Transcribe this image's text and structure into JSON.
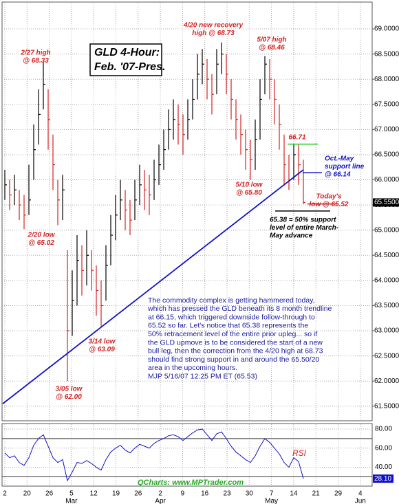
{
  "chart_data": {
    "type": "ohlc",
    "title_lines": [
      "GLD 4-Hour:",
      "Feb. '07-Pres."
    ],
    "high": [
      66.2,
      66.0,
      66.1,
      65.8,
      65.7,
      66.3,
      67.1,
      67.8,
      68.33,
      67.8,
      66.9,
      66.0,
      66.1,
      64.6,
      64.2,
      64.9,
      64.7,
      65.0,
      64.6,
      64.3,
      64.0,
      64.7,
      65.3,
      65.7,
      66.0,
      65.8,
      65.6,
      66.0,
      66.3,
      66.2,
      66.1,
      66.4,
      66.7,
      67.0,
      67.4,
      67.6,
      67.5,
      67.3,
      67.6,
      68.0,
      68.5,
      68.6,
      68.4,
      68.1,
      68.6,
      68.73,
      68.5,
      68.0,
      67.6,
      67.3,
      67.0,
      66.8,
      67.2,
      68.0,
      68.46,
      68.4,
      68.0,
      67.5,
      66.9,
      66.5,
      66.71,
      66.7,
      66.4
    ],
    "low": [
      65.6,
      65.4,
      65.5,
      65.2,
      65.02,
      65.3,
      66.0,
      66.7,
      67.4,
      66.6,
      65.8,
      65.1,
      65.2,
      62.0,
      62.9,
      63.5,
      63.7,
      63.9,
      63.8,
      63.3,
      63.09,
      63.6,
      64.3,
      64.8,
      65.2,
      65.0,
      64.9,
      65.2,
      65.5,
      65.4,
      65.3,
      65.6,
      65.9,
      66.2,
      66.6,
      66.8,
      66.7,
      66.5,
      66.8,
      67.2,
      67.6,
      67.9,
      67.6,
      67.3,
      67.7,
      68.1,
      67.7,
      67.2,
      66.8,
      66.5,
      66.2,
      66.0,
      66.2,
      66.8,
      67.7,
      67.6,
      67.1,
      66.6,
      65.9,
      65.8,
      66.0,
      65.9,
      65.52
    ],
    "close": [
      65.9,
      65.7,
      65.8,
      65.5,
      65.3,
      65.6,
      66.6,
      67.3,
      67.9,
      67.2,
      66.3,
      65.6,
      65.8,
      63.0,
      63.6,
      64.4,
      64.2,
      64.5,
      64.2,
      63.8,
      63.5,
      64.3,
      64.9,
      65.3,
      65.6,
      65.4,
      65.2,
      65.6,
      65.9,
      65.8,
      65.7,
      66.0,
      66.3,
      66.6,
      67.0,
      67.2,
      67.1,
      66.9,
      67.2,
      67.6,
      68.1,
      68.3,
      68.0,
      67.7,
      68.3,
      68.5,
      68.1,
      67.6,
      67.2,
      66.9,
      66.6,
      66.4,
      66.8,
      67.6,
      68.3,
      68.0,
      67.6,
      67.1,
      66.3,
      66.0,
      66.5,
      66.3,
      65.55
    ],
    "up_color": "#000000",
    "down_color": "#d42020",
    "ylim": [
      61.21,
      69.52
    ],
    "yticks": [
      {
        "value": 61.5,
        "label": "61.5000"
      },
      {
        "value": 62,
        "label": "62.0000"
      },
      {
        "value": 62.5,
        "label": "62.5000"
      },
      {
        "value": 63,
        "label": "63.0000"
      },
      {
        "value": 63.5,
        "label": "63.5000"
      },
      {
        "value": 64,
        "label": "64.0000"
      },
      {
        "value": 64.5,
        "label": "64.5000"
      },
      {
        "value": 65,
        "label": "65.0000"
      },
      {
        "value": 65.5,
        "label": "65.5000"
      },
      {
        "value": 66,
        "label": "66.0000"
      },
      {
        "value": 66.5,
        "label": "66.5000"
      },
      {
        "value": 67,
        "label": "67.0000"
      },
      {
        "value": 67.5,
        "label": "67.5000"
      },
      {
        "value": 68,
        "label": "68.0000"
      },
      {
        "value": 68.5,
        "label": "68.5000"
      },
      {
        "value": 69,
        "label": "69.0000"
      }
    ],
    "last_price": {
      "value": 65.55,
      "label": "65.5500"
    },
    "grid": true,
    "trendline": {
      "from": 61.55,
      "to": 66.2,
      "color": "#1010c8"
    },
    "levels": [
      {
        "value": 66.71,
        "color": "#22cc22"
      },
      {
        "value": 66.14,
        "color": "#1010c8"
      },
      {
        "value": 65.52,
        "color": "#d42020"
      },
      {
        "value": 65.38,
        "color": "#000000"
      }
    ],
    "annotations": [
      {
        "lines": [
          "2/27 high",
          "@ 68.33"
        ],
        "color": "#d42020"
      },
      {
        "lines": [
          "4/20 new recovery",
          "high @ 68.73"
        ],
        "color": "#d42020"
      },
      {
        "lines": [
          "5/07 high",
          "@ 68.46"
        ],
        "color": "#d42020"
      },
      {
        "lines": [
          "66.71"
        ],
        "color": "#d42020"
      },
      {
        "lines": [
          "Oct.-May",
          "support line",
          "@ 66.14"
        ],
        "color": "#1010c8"
      },
      {
        "lines": [
          "5/10 low",
          "@ 65.80"
        ],
        "color": "#d42020"
      },
      {
        "lines": [
          "Today's",
          "low @ 65.52"
        ],
        "color": "#d42020"
      },
      {
        "lines": [
          "65.38 = 50% support",
          "level of entire March-",
          "May advance"
        ],
        "color": "#000000"
      },
      {
        "lines": [
          "2/20 low",
          "@ 65.02"
        ],
        "color": "#d42020"
      },
      {
        "lines": [
          "3/14 low",
          "@ 63.09"
        ],
        "color": "#d42020"
      },
      {
        "lines": [
          "3/05 low",
          "@ 62.00"
        ],
        "color": "#d42020"
      }
    ],
    "commentary": [
      "The commodity complex is getting hammered today,",
      "which has pressed the GLD beneath its 8 month trendline",
      "at 66.15, which triggered downside follow-through to",
      "65.52 so far. Let's notice that 65.38 represents the",
      "50% retracement level of the entire prior upleg... so if",
      "the GLD upmove is to be considered the start of a new",
      "bull leg, then the correction from the 4/20 high at 68.73",
      "should find strong support in and around the 65.50/20",
      "area in the upcoming hours.",
      "MJP  5/16/07  12:25 PM ET (65.53)"
    ],
    "categories": [
      "2",
      "20",
      "26",
      "5",
      "12",
      "19",
      "26",
      "2",
      "9",
      "16",
      "23",
      "30",
      "7",
      "14",
      "21",
      "29",
      "4"
    ],
    "months": [
      null,
      null,
      null,
      "Mar",
      null,
      null,
      null,
      "Apr",
      null,
      null,
      null,
      null,
      "May",
      null,
      null,
      null,
      "Jun"
    ],
    "rsi": {
      "name": "RSI",
      "color": "#1010c8",
      "values": [
        55,
        50,
        52,
        45,
        42,
        50,
        63,
        70,
        74,
        62,
        50,
        45,
        48,
        26,
        35,
        45,
        44,
        47,
        44,
        40,
        37,
        48,
        56,
        60,
        63,
        58,
        55,
        60,
        64,
        62,
        60,
        65,
        68,
        70,
        73,
        74,
        72,
        68,
        72,
        76,
        79,
        80,
        74,
        68,
        75,
        77,
        70,
        62,
        56,
        52,
        48,
        45,
        52,
        62,
        70,
        66,
        60,
        54,
        45,
        40,
        50,
        46,
        28.1
      ],
      "last_label": {
        "value": 28.1,
        "label": "28.10"
      },
      "ylim": [
        21,
        85
      ],
      "yticks": [
        {
          "value": 40,
          "label": "40.00"
        },
        {
          "value": 60,
          "label": "60.00"
        },
        {
          "value": 80,
          "label": "80.00"
        }
      ],
      "levels": [
        70,
        30
      ]
    },
    "source": "QCharts: www.MPTrader.com"
  }
}
